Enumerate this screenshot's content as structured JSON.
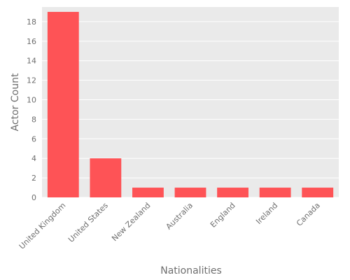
{
  "chart_data": {
    "type": "bar",
    "categories": [
      "United Kingdom",
      "United States",
      "New Zealand",
      "Australia",
      "England",
      "Ireland",
      "Canada"
    ],
    "values": [
      19,
      4,
      1,
      1,
      1,
      1,
      1
    ],
    "title": "",
    "xlabel": "Nationalities",
    "ylabel": "Actor Count",
    "ylim": [
      0,
      19.5
    ],
    "yticks": [
      0,
      2,
      4,
      6,
      8,
      10,
      12,
      14,
      16,
      18
    ],
    "grid": true,
    "colors": {
      "bar": "#fe5356",
      "plot_background": "#eaeaea",
      "grid": "#ffffff",
      "text": "#6e6e6e"
    }
  }
}
